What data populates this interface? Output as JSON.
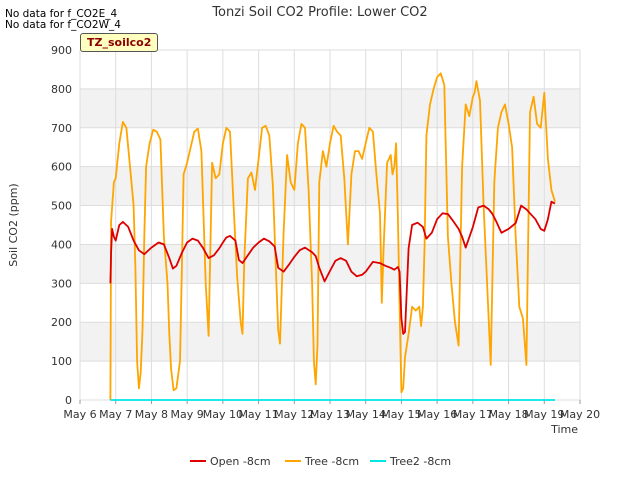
{
  "no_data_messages": [
    "No data for f_CO2E_4",
    "No data for f_CO2W_4"
  ],
  "site_label": "TZ_soilco2",
  "chart_data": {
    "type": "line",
    "title": "Tonzi Soil CO2 Profile: Lower CO2",
    "xlabel": "Time",
    "ylabel": "Soil CO2 (ppm)",
    "xlim": [
      6,
      20
    ],
    "ylim": [
      0,
      900
    ],
    "x_ticks": [
      6,
      7,
      8,
      9,
      10,
      11,
      12,
      13,
      14,
      15,
      16,
      17,
      18,
      19,
      20
    ],
    "x_tick_labels": [
      "May 6",
      "May 7",
      "May 8",
      "May 9",
      "May 10",
      "May 11",
      "May 12",
      "May 13",
      "May 14",
      "May 15",
      "May 16",
      "May 17",
      "May 18",
      "May 19",
      "May 20"
    ],
    "y_ticks": [
      0,
      100,
      200,
      300,
      400,
      500,
      600,
      700,
      800,
      900
    ],
    "y_tick_labels": [
      "0",
      "100",
      "200",
      "300",
      "400",
      "500",
      "600",
      "700",
      "800",
      "900"
    ],
    "grid": true,
    "legend_position": "bottom-center",
    "series": [
      {
        "name": "Open -8cm",
        "color": "#dd0000",
        "x": [
          6.85,
          6.87,
          6.9,
          6.95,
          7.0,
          7.1,
          7.2,
          7.35,
          7.5,
          7.65,
          7.8,
          8.0,
          8.2,
          8.35,
          8.5,
          8.6,
          8.7,
          8.85,
          9.0,
          9.15,
          9.3,
          9.45,
          9.6,
          9.75,
          9.9,
          10.0,
          10.1,
          10.2,
          10.35,
          10.45,
          10.55,
          10.7,
          10.85,
          11.0,
          11.15,
          11.3,
          11.45,
          11.55,
          11.7,
          11.85,
          12.0,
          12.15,
          12.3,
          12.5,
          12.6,
          12.7,
          12.85,
          13.0,
          13.15,
          13.3,
          13.45,
          13.6,
          13.75,
          13.9,
          14.0,
          14.2,
          14.4,
          14.55,
          14.7,
          14.8,
          14.9,
          14.95,
          15.0,
          15.05,
          15.1,
          15.2,
          15.3,
          15.45,
          15.6,
          15.7,
          15.85,
          16.0,
          16.15,
          16.3,
          16.45,
          16.6,
          16.7,
          16.8,
          17.0,
          17.15,
          17.3,
          17.45,
          17.55,
          17.65,
          17.8,
          17.9,
          18.0,
          18.2,
          18.35,
          18.5,
          18.6,
          18.75,
          18.9,
          19.0,
          19.1,
          19.2,
          19.3
        ],
        "values": [
          300,
          380,
          440,
          420,
          410,
          450,
          458,
          445,
          410,
          385,
          375,
          392,
          405,
          400,
          365,
          338,
          345,
          378,
          405,
          415,
          410,
          390,
          365,
          372,
          390,
          405,
          418,
          422,
          410,
          360,
          352,
          372,
          392,
          405,
          415,
          408,
          395,
          340,
          330,
          348,
          368,
          385,
          392,
          380,
          370,
          340,
          305,
          332,
          358,
          365,
          358,
          330,
          318,
          322,
          330,
          355,
          352,
          345,
          340,
          335,
          342,
          330,
          210,
          170,
          175,
          390,
          450,
          456,
          445,
          415,
          430,
          465,
          480,
          478,
          460,
          440,
          420,
          392,
          445,
          495,
          500,
          490,
          478,
          460,
          430,
          435,
          440,
          455,
          500,
          490,
          480,
          465,
          440,
          435,
          465,
          510,
          505
        ]
      },
      {
        "name": "Tree -8cm",
        "color": "#ffa500",
        "x": [
          6.85,
          6.87,
          6.95,
          7.0,
          7.1,
          7.2,
          7.3,
          7.4,
          7.5,
          7.55,
          7.6,
          7.65,
          7.7,
          7.75,
          7.8,
          7.85,
          7.95,
          8.05,
          8.15,
          8.25,
          8.35,
          8.45,
          8.5,
          8.55,
          8.62,
          8.7,
          8.8,
          8.85,
          8.9,
          9.0,
          9.1,
          9.2,
          9.3,
          9.4,
          9.45,
          9.52,
          9.6,
          9.7,
          9.8,
          9.9,
          10.0,
          10.1,
          10.2,
          10.3,
          10.4,
          10.5,
          10.55,
          10.6,
          10.7,
          10.8,
          10.9,
          11.0,
          11.1,
          11.2,
          11.3,
          11.4,
          11.5,
          11.55,
          11.6,
          11.7,
          11.8,
          11.9,
          12.0,
          12.1,
          12.2,
          12.3,
          12.4,
          12.5,
          12.55,
          12.6,
          12.65,
          12.7,
          12.8,
          12.9,
          13.0,
          13.1,
          13.2,
          13.3,
          13.4,
          13.5,
          13.6,
          13.7,
          13.8,
          13.9,
          14.0,
          14.1,
          14.2,
          14.3,
          14.4,
          14.45,
          14.5,
          14.6,
          14.7,
          14.75,
          14.8,
          14.85,
          14.9,
          14.95,
          15.0,
          15.05,
          15.1,
          15.2,
          15.3,
          15.4,
          15.5,
          15.55,
          15.6,
          15.65,
          15.7,
          15.8,
          15.9,
          16.0,
          16.1,
          16.2,
          16.3,
          16.4,
          16.5,
          16.6,
          16.7,
          16.8,
          16.9,
          17.0,
          17.05,
          17.1,
          17.2,
          17.3,
          17.4,
          17.5,
          17.6,
          17.7,
          17.8,
          17.9,
          18.0,
          18.1,
          18.2,
          18.3,
          18.4,
          18.5,
          18.6,
          18.7,
          18.8,
          18.9,
          19.0,
          19.1,
          19.2,
          19.3
        ],
        "values": [
          0,
          460,
          560,
          570,
          660,
          715,
          700,
          600,
          500,
          340,
          100,
          30,
          70,
          180,
          420,
          600,
          660,
          695,
          690,
          670,
          420,
          300,
          170,
          80,
          25,
          30,
          100,
          330,
          580,
          610,
          650,
          690,
          698,
          640,
          500,
          300,
          165,
          610,
          570,
          580,
          660,
          700,
          690,
          500,
          320,
          200,
          170,
          360,
          570,
          585,
          540,
          620,
          700,
          705,
          680,
          550,
          300,
          180,
          145,
          430,
          630,
          560,
          540,
          660,
          710,
          700,
          540,
          300,
          100,
          40,
          140,
          560,
          640,
          600,
          660,
          705,
          690,
          680,
          570,
          400,
          580,
          640,
          640,
          620,
          660,
          700,
          690,
          580,
          480,
          250,
          390,
          610,
          630,
          580,
          600,
          660,
          470,
          240,
          20,
          30,
          110,
          170,
          240,
          230,
          240,
          190,
          240,
          400,
          680,
          760,
          800,
          830,
          840,
          810,
          420,
          300,
          200,
          140,
          600,
          760,
          730,
          780,
          790,
          820,
          770,
          500,
          300,
          90,
          560,
          700,
          740,
          760,
          710,
          650,
          420,
          240,
          210,
          90,
          740,
          780,
          710,
          700,
          790,
          620,
          540,
          510
        ]
      },
      {
        "name": "Tree2 -8cm",
        "color": "#00e5e5",
        "x": [
          6.85,
          19.3
        ],
        "values": [
          0,
          0
        ]
      }
    ]
  }
}
